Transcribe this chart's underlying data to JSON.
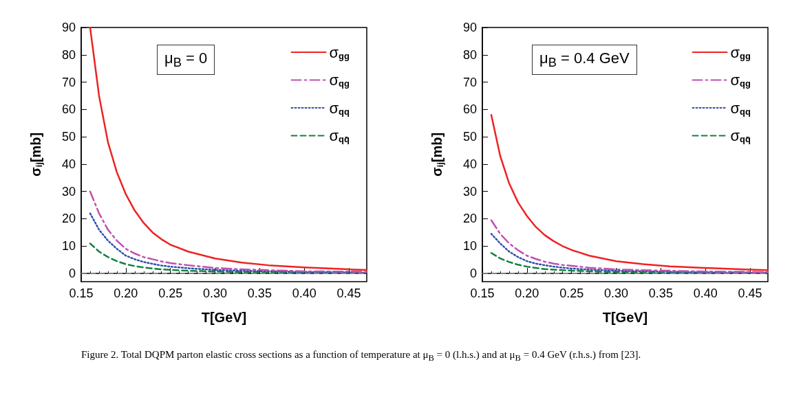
{
  "chart_data": [
    {
      "type": "line",
      "xlabel": "T[GeV]",
      "ylabel": "σ$_{ij}$[mb]",
      "annotations": [
        "μ$_{B}$ = 0"
      ],
      "xlim": [
        0.15,
        0.47
      ],
      "xticks": [
        0.15,
        {
          "value": 0.2,
          "label": "0.20"
        },
        0.25,
        {
          "value": 0.3,
          "label": "0.30"
        },
        0.35,
        {
          "value": 0.4,
          "label": "0.40"
        },
        0.45
      ],
      "ylim": [
        -3,
        90
      ],
      "yticks": [
        0,
        10,
        20,
        30,
        40,
        50,
        60,
        70,
        80,
        90
      ],
      "grid": false,
      "legend": "top right",
      "marker": "none",
      "x": [
        0.16,
        0.17,
        0.18,
        0.19,
        0.2,
        0.21,
        0.22,
        0.23,
        0.24,
        0.25,
        0.27,
        0.3,
        0.33,
        0.36,
        0.4,
        0.45,
        0.47
      ],
      "ref_lines": [
        {
          "axis": "y",
          "value": 0,
          "color": "#999999",
          "line_style": "dashed"
        }
      ],
      "series": [
        {
          "name": "σ$_{gg}$",
          "color": "#ee2222",
          "line_style": "solid",
          "values": [
            90,
            65,
            48,
            37,
            29,
            23,
            18.5,
            15,
            12.5,
            10.5,
            8,
            5.5,
            4,
            3,
            2.2,
            1.5,
            1.3
          ]
        },
        {
          "name": "σ$_{qg}$",
          "color": "#c050b0",
          "line_style": "dashdot",
          "values": [
            30,
            22,
            16,
            12,
            9,
            7.3,
            6,
            5.2,
            4.4,
            3.8,
            3,
            2,
            1.5,
            1.2,
            0.8,
            0.7,
            0.6
          ]
        },
        {
          "name": "σ$_{qq}$",
          "color": "#3050a8",
          "line_style": "dotted",
          "values": [
            22,
            16,
            12,
            9,
            6.5,
            5.2,
            4.2,
            3.5,
            2.9,
            2.5,
            1.9,
            1.3,
            1,
            0.8,
            0.5,
            0.4,
            0.3
          ]
        },
        {
          "name": "σ$_{qq̄}$",
          "color": "#108040",
          "line_style": "dashed",
          "values": [
            11,
            8,
            6,
            4.5,
            3.4,
            2.7,
            2.2,
            1.8,
            1.5,
            1.3,
            1,
            0.7,
            0.5,
            0.4,
            0.3,
            0.2,
            0.2
          ]
        }
      ]
    },
    {
      "type": "line",
      "xlabel": "T[GeV]",
      "ylabel": "σ$_{ij}$[mb]",
      "annotations": [
        "μ$_{B}$ = 0.4 GeV",
        "Figure 2. Total DQPM parton elastic cross sections as a function of temperature at μ$_{B}$ = 0 (l.h.s.) and at μ$_{B}$ = 0.4 GeV (r.h.s.) from [23]."
      ],
      "xlim": [
        0.15,
        0.47
      ],
      "xticks": [
        0.15,
        {
          "value": 0.2,
          "label": "0.20"
        },
        0.25,
        {
          "value": 0.3,
          "label": "0.30"
        },
        0.35,
        {
          "value": 0.4,
          "label": "0.40"
        },
        0.45
      ],
      "ylim": [
        -3,
        90
      ],
      "yticks": [
        0,
        10,
        20,
        30,
        40,
        50,
        60,
        70,
        80,
        90
      ],
      "grid": false,
      "legend": "top right",
      "marker": "none",
      "x": [
        0.16,
        0.17,
        0.18,
        0.19,
        0.2,
        0.21,
        0.22,
        0.23,
        0.24,
        0.25,
        0.27,
        0.3,
        0.33,
        0.36,
        0.4,
        0.45,
        0.47
      ],
      "ref_lines": [
        {
          "axis": "y",
          "value": 0,
          "color": "#999999",
          "line_style": "dashed"
        }
      ],
      "series": [
        {
          "name": "σ$_{gg}$",
          "color": "#ee2222",
          "line_style": "solid",
          "values": [
            58,
            43,
            33,
            26,
            21,
            17,
            14,
            11.8,
            10,
            8.6,
            6.5,
            4.5,
            3.4,
            2.6,
            2,
            1.4,
            1.2
          ]
        },
        {
          "name": "σ$_{qg}$",
          "color": "#c050b0",
          "line_style": "dashdot",
          "values": [
            19.5,
            14.5,
            11,
            8.5,
            6.5,
            5.3,
            4.3,
            3.6,
            3.1,
            2.8,
            2.1,
            1.5,
            1.2,
            1,
            0.7,
            0.6,
            0.5
          ]
        },
        {
          "name": "σ$_{qq}$",
          "color": "#3050a8",
          "line_style": "dotted",
          "values": [
            14.5,
            11,
            8,
            6,
            4.5,
            3.6,
            3,
            2.5,
            2.1,
            1.8,
            1.4,
            1,
            0.8,
            0.6,
            0.4,
            0.3,
            0.3
          ]
        },
        {
          "name": "σ$_{qq̄}$",
          "color": "#108040",
          "line_style": "dashed",
          "values": [
            7.5,
            5.5,
            4.2,
            3.2,
            2.5,
            2,
            1.6,
            1.4,
            1.2,
            1,
            0.8,
            0.5,
            0.4,
            0.3,
            0.2,
            0.2,
            0.2
          ]
        }
      ]
    }
  ]
}
